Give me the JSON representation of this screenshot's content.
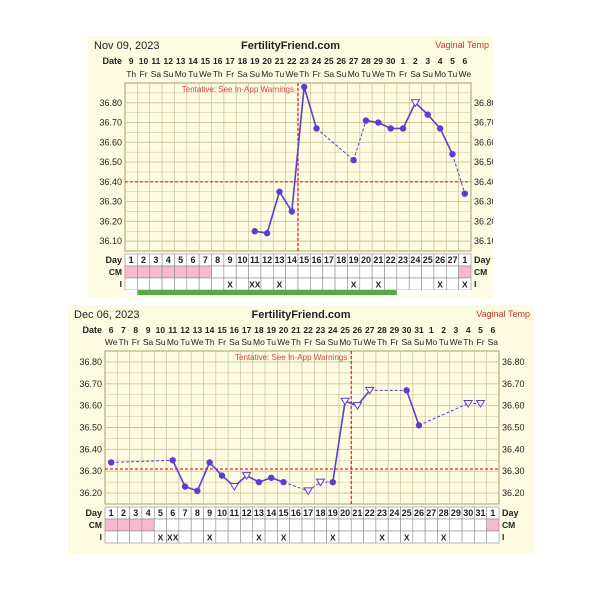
{
  "charts": [
    {
      "header": {
        "date": "Nov 09, 2023",
        "site": "FertilityFriend.com",
        "temp_type": "Vaginal Temp"
      },
      "warning": "Tentative: See In-App Warnings",
      "row_labels": {
        "date": "Date",
        "day": "Day",
        "cm": "CM",
        "intercourse": "I"
      },
      "ylabels": [
        "36.80",
        "36.70",
        "36.60",
        "36.50",
        "36.40",
        "36.30",
        "36.20",
        "36.10"
      ],
      "dates": [
        "9",
        "10",
        "11",
        "12",
        "13",
        "14",
        "15",
        "16",
        "17",
        "18",
        "19",
        "20",
        "21",
        "22",
        "23",
        "24",
        "25",
        "26",
        "27",
        "28",
        "29",
        "30",
        "1",
        "2",
        "3",
        "4",
        "5",
        "6"
      ],
      "weekdays": [
        "Th",
        "Fr",
        "Sa",
        "Su",
        "Mo",
        "Tu",
        "We",
        "Th",
        "Fr",
        "Sa",
        "Su",
        "Mo",
        "Tu",
        "We",
        "Th",
        "Fr",
        "Sa",
        "Su",
        "Mo",
        "Tu",
        "We",
        "Th",
        "Fr",
        "Sa",
        "Su",
        "Mo",
        "Tu",
        "We"
      ],
      "days": [
        "1",
        "2",
        "3",
        "4",
        "5",
        "6",
        "7",
        "8",
        "9",
        "10",
        "11",
        "12",
        "13",
        "14",
        "15",
        "16",
        "17",
        "18",
        "19",
        "20",
        "21",
        "22",
        "23",
        "24",
        "25",
        "26",
        "27",
        "1"
      ],
      "intercourse": [
        "",
        "",
        "",
        "",
        "",
        "",
        "",
        "",
        "X",
        "",
        "XX",
        "",
        "X",
        "",
        "",
        "",
        "",
        "",
        "X",
        "",
        "X",
        "",
        "",
        "",
        "",
        "X",
        "",
        "X"
      ],
      "colors": {
        "line": "#5a3fcf",
        "coverline": "#cc3333",
        "grid": "#c8c19a",
        "background": "#fdfbe1",
        "menstruation": "#f7b9cf"
      }
    },
    {
      "header": {
        "date": "Dec 06, 2023",
        "site": "FertilityFriend.com",
        "temp_type": "Vaginal Temp"
      },
      "warning": "Tentative: See In-App Warnings",
      "row_labels": {
        "date": "Date",
        "day": "Day",
        "cm": "CM",
        "intercourse": "I"
      },
      "ylabels": [
        "36.80",
        "36.70",
        "36.60",
        "36.50",
        "36.40",
        "36.30",
        "36.20"
      ],
      "dates": [
        "6",
        "7",
        "8",
        "9",
        "10",
        "11",
        "12",
        "13",
        "14",
        "15",
        "16",
        "17",
        "18",
        "19",
        "20",
        "21",
        "22",
        "23",
        "24",
        "25",
        "26",
        "27",
        "28",
        "29",
        "30",
        "31",
        "1",
        "2",
        "3",
        "4",
        "5",
        "6"
      ],
      "weekdays": [
        "We",
        "Th",
        "Fr",
        "Sa",
        "Su",
        "Mo",
        "Tu",
        "We",
        "Th",
        "Fr",
        "Sa",
        "Su",
        "Mo",
        "Tu",
        "We",
        "Th",
        "Fr",
        "Sa",
        "Su",
        "Mo",
        "Tu",
        "We",
        "Th",
        "Fr",
        "Sa",
        "Su",
        "Mo",
        "Tu",
        "We",
        "Th",
        "Fr",
        "Sa"
      ],
      "days": [
        "1",
        "2",
        "3",
        "4",
        "5",
        "6",
        "7",
        "8",
        "9",
        "10",
        "11",
        "12",
        "13",
        "14",
        "15",
        "16",
        "17",
        "18",
        "19",
        "20",
        "21",
        "22",
        "23",
        "24",
        "25",
        "26",
        "27",
        "28",
        "29",
        "30",
        "31",
        "1"
      ],
      "intercourse": [
        "",
        "",
        "",
        "",
        "X",
        "XX",
        "",
        "",
        "X",
        "",
        "",
        "",
        "X",
        "",
        "X",
        "",
        "",
        "",
        "X",
        "",
        "",
        "",
        "X",
        "",
        "X",
        "",
        "",
        "X",
        "",
        "",
        "",
        ""
      ],
      "colors": {
        "line": "#5a3fcf",
        "coverline": "#cc3333",
        "grid": "#c8c19a",
        "background": "#fdfbe1",
        "menstruation": "#f7b9cf"
      }
    }
  ],
  "chart_data": [
    {
      "type": "line",
      "title": "Nov 09, 2023",
      "x": [
        "9",
        "10",
        "11",
        "12",
        "13",
        "14",
        "15",
        "16",
        "17",
        "18",
        "19",
        "20",
        "21",
        "22",
        "23",
        "24",
        "25",
        "26",
        "27",
        "28",
        "29",
        "30",
        "1",
        "2",
        "3",
        "4",
        "5",
        "6"
      ],
      "ylim": [
        36.05,
        36.9
      ],
      "coverline": 36.4,
      "ovulation_day_index": 13,
      "menstruation_days": [
        0,
        1,
        2,
        3,
        4,
        5,
        6,
        27
      ],
      "series": [
        {
          "values": [
            null,
            null,
            null,
            null,
            null,
            null,
            null,
            null,
            null,
            null,
            36.15,
            36.14,
            36.35,
            36.25,
            36.88,
            36.67,
            null,
            null,
            36.51,
            36.71,
            36.7,
            36.67,
            36.67,
            36.8,
            36.74,
            36.67,
            36.54,
            36.34
          ],
          "markers": [
            "",
            "",
            "",
            "",
            "",
            "",
            "",
            "",
            "",
            "",
            "dot",
            "dot",
            "dot",
            "dot",
            "dot",
            "dot",
            "",
            "",
            "dot",
            "dot",
            "dot",
            "dot",
            "dot",
            "tri",
            "dot",
            "dot",
            "dot",
            "dot"
          ],
          "dashed_from": [
            18,
            26
          ]
        }
      ]
    },
    {
      "type": "line",
      "title": "Dec 06, 2023",
      "x": [
        "6",
        "7",
        "8",
        "9",
        "10",
        "11",
        "12",
        "13",
        "14",
        "15",
        "16",
        "17",
        "18",
        "19",
        "20",
        "21",
        "22",
        "23",
        "24",
        "25",
        "26",
        "27",
        "28",
        "29",
        "30",
        "31",
        "1",
        "2",
        "3",
        "4",
        "5",
        "6"
      ],
      "ylim": [
        36.15,
        36.85
      ],
      "coverline": 36.31,
      "ovulation_day_index": 19,
      "menstruation_days": [
        0,
        1,
        2,
        3,
        31
      ],
      "series": [
        {
          "values": [
            36.34,
            null,
            null,
            null,
            null,
            36.35,
            36.23,
            36.21,
            36.34,
            36.28,
            36.23,
            36.28,
            36.25,
            36.27,
            36.25,
            null,
            36.21,
            36.25,
            36.25,
            36.62,
            36.6,
            36.67,
            null,
            null,
            36.67,
            36.51,
            null,
            null,
            null,
            36.61,
            36.61,
            null
          ],
          "markers": [
            "dot",
            "",
            "",
            "",
            "",
            "dot",
            "dot",
            "dot",
            "dot",
            "dot",
            "tri",
            "tri",
            "dot",
            "dot",
            "dot",
            "",
            "tri",
            "tri",
            "dot",
            "tri",
            "tri",
            "tri",
            "",
            "",
            "dot",
            "dot",
            "",
            "",
            "",
            "tri",
            "tri",
            ""
          ],
          "dashed_from": [
            0,
            15,
            16,
            17,
            21,
            25,
            29
          ]
        }
      ]
    }
  ]
}
